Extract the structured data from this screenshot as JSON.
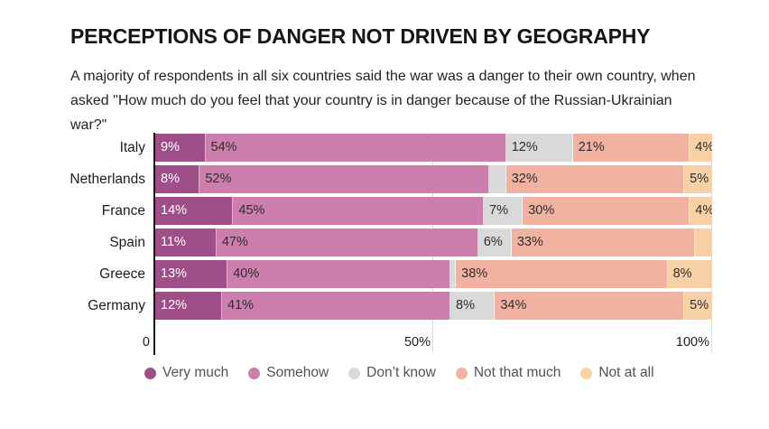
{
  "header": {
    "title": "PERCEPTIONS OF DANGER NOT DRIVEN BY GEOGRAPHY",
    "subtitle": "A majority of respondents in all six countries said the war was a danger to their own country, when asked \"How much do you feel that your country is in danger because of the Russian-Ukrainian war?\""
  },
  "chart_data": {
    "type": "bar",
    "stacked": true,
    "orientation": "horizontal",
    "unit": "%",
    "xlim": [
      0,
      100
    ],
    "grid": "vertical ticks at 50% and 100%",
    "legend_position": "bottom",
    "categories": [
      "Italy",
      "Netherlands",
      "France",
      "Spain",
      "Greece",
      "Germany"
    ],
    "series": [
      {
        "name": "Very much",
        "color": "#9f4f88",
        "values": [
          9,
          8,
          14,
          11,
          13,
          12
        ]
      },
      {
        "name": "Somehow",
        "color": "#cc7fac",
        "values": [
          54,
          52,
          45,
          47,
          40,
          41
        ]
      },
      {
        "name": "Don’t know",
        "color": "#d9d9d9",
        "values": [
          12,
          3,
          7,
          6,
          1,
          8
        ]
      },
      {
        "name": "Not that much",
        "color": "#f2b2a2",
        "values": [
          21,
          32,
          30,
          33,
          38,
          34
        ]
      },
      {
        "name": "Not at all",
        "color": "#f8d2a6",
        "values": [
          4,
          5,
          4,
          3,
          8,
          5
        ]
      }
    ],
    "label_min_show": 4,
    "axis": {
      "ticks": [
        "0",
        "50%",
        "100%"
      ]
    },
    "legend": [
      "Very much",
      "Somehow",
      "Don’t know",
      "Not that much",
      "Not at all"
    ]
  },
  "style": {
    "first_segment_label_color": "#ffffff",
    "segment_label_color": "#2d2d2d"
  }
}
